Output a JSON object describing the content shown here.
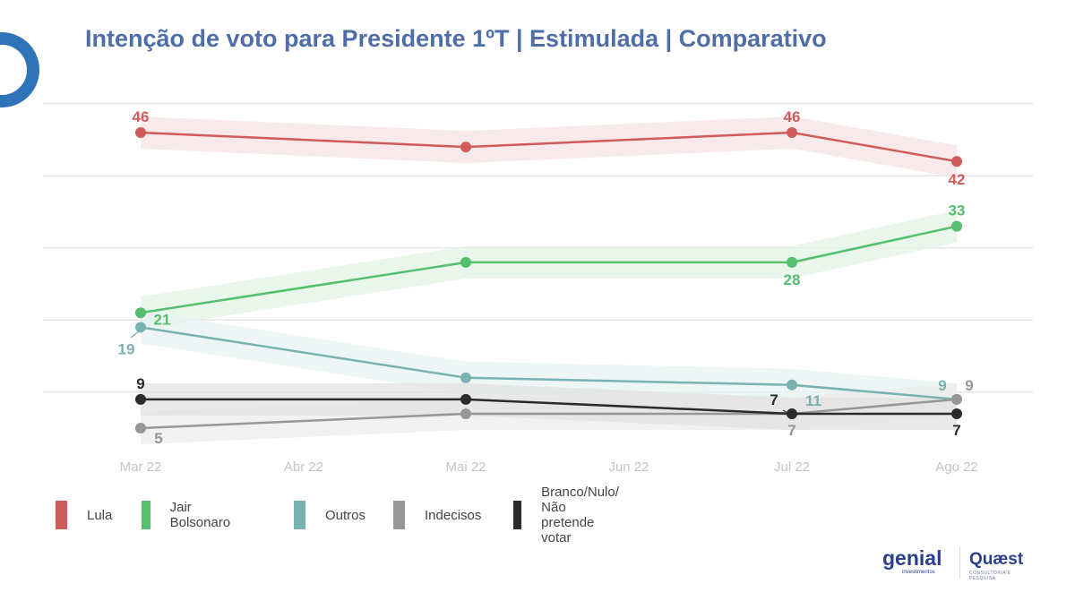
{
  "header": {
    "title": "Intenção de voto para Presidente 1ºT | Estimulada | Comparativo"
  },
  "chart_data": {
    "type": "line",
    "title": "Intenção de voto para Presidente 1ºT | Estimulada | Comparativo",
    "xlabel": "",
    "ylabel": "",
    "x": [
      "Mar 22",
      "Abr 22",
      "Mai 22",
      "Jun 22",
      "Jul 22",
      "Ago 22"
    ],
    "point_months": [
      "Mar 22",
      "Mai 22",
      "Jul 22",
      "Ago 22"
    ],
    "ylim": [
      0,
      50
    ],
    "yticks": [
      10,
      20,
      30,
      40,
      50
    ],
    "grid": true,
    "legend_position": "bottom",
    "series": [
      {
        "name": "Lula",
        "color": "#d15b5b",
        "band_color": "#f6e3e4",
        "values": [
          46,
          44,
          46,
          42
        ],
        "labels": [
          "46",
          "",
          "46",
          "42"
        ]
      },
      {
        "name": "Jair Bolsonaro",
        "color": "#55bf6d",
        "band_color": "#e1f3e5",
        "values": [
          21,
          28,
          28,
          33
        ],
        "labels": [
          "21",
          "",
          "28",
          "33"
        ]
      },
      {
        "name": "Outros",
        "color": "#7ab2b2",
        "band_color": "#e7f1f1",
        "values": [
          19,
          12,
          11,
          9
        ],
        "labels": [
          "19",
          "",
          "11",
          "9"
        ]
      },
      {
        "name": "Indecisos",
        "color": "#979797",
        "band_color": "#ececec",
        "values": [
          5,
          7,
          7,
          9
        ],
        "labels": [
          "5",
          "",
          "7",
          "9"
        ]
      },
      {
        "name": "Branco/Nulo/ Não pretende votar",
        "color": "#2b2b2b",
        "band_color": "#e2e2e2",
        "values": [
          9,
          9,
          7,
          7
        ],
        "labels": [
          "9",
          "",
          "7",
          "7"
        ]
      }
    ]
  },
  "legend": {
    "items": [
      {
        "label": "Lula",
        "color": "#d15b5b"
      },
      {
        "label": "Jair Bolsonaro",
        "color": "#55bf6d"
      },
      {
        "label": "Outros",
        "color": "#7ab2b2"
      },
      {
        "label": "Indecisos",
        "color": "#979797"
      },
      {
        "label_line1": "Branco/Nulo/",
        "label_line2": "Não pretende votar",
        "color": "#2b2b2b"
      }
    ]
  },
  "footer": {
    "logo1": "genial",
    "logo1_sub": "investimentos",
    "logo2": "Quæst",
    "logo2_sub": "CONSULTORIA E PESQUISA"
  }
}
